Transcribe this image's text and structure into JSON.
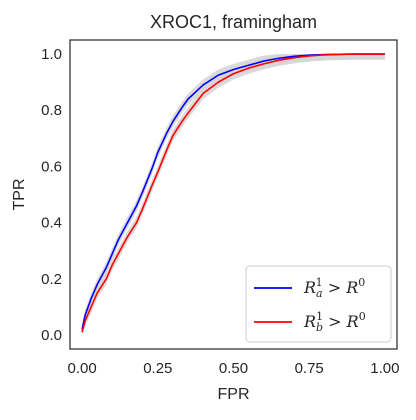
{
  "chart_data": {
    "type": "line",
    "title": "XROC1, framingham",
    "xlabel": "FPR",
    "ylabel": "TPR",
    "xlim": [
      -0.04,
      1.04
    ],
    "ylim": [
      -0.05,
      1.05
    ],
    "xticks": [
      0.0,
      0.25,
      0.5,
      0.75,
      1.0
    ],
    "xtick_labels": [
      "0.00",
      "0.25",
      "0.50",
      "0.75",
      "1.00"
    ],
    "yticks": [
      0.0,
      0.2,
      0.4,
      0.6,
      0.8,
      1.0
    ],
    "ytick_labels": [
      "0.0",
      "0.2",
      "0.4",
      "0.6",
      "0.8",
      "1.0"
    ],
    "grid": false,
    "legend_position": "lower-right",
    "series": [
      {
        "name": "R_a^1 > R^0",
        "color": "#0000ff",
        "x": [
          0.0,
          0.01,
          0.03,
          0.05,
          0.08,
          0.1,
          0.12,
          0.15,
          0.18,
          0.2,
          0.23,
          0.25,
          0.28,
          0.3,
          0.33,
          0.35,
          0.4,
          0.45,
          0.5,
          0.55,
          0.6,
          0.65,
          0.7,
          0.75,
          0.8,
          0.85,
          0.9,
          1.0
        ],
        "y": [
          0.02,
          0.07,
          0.13,
          0.18,
          0.24,
          0.29,
          0.34,
          0.4,
          0.46,
          0.51,
          0.59,
          0.65,
          0.72,
          0.76,
          0.81,
          0.84,
          0.89,
          0.925,
          0.945,
          0.96,
          0.975,
          0.985,
          0.992,
          0.996,
          0.998,
          0.999,
          1.0,
          1.0
        ]
      },
      {
        "name": "R_b^1 > R^0",
        "color": "#ff0000",
        "x": [
          0.0,
          0.01,
          0.03,
          0.05,
          0.08,
          0.1,
          0.12,
          0.15,
          0.18,
          0.2,
          0.23,
          0.25,
          0.28,
          0.3,
          0.33,
          0.35,
          0.4,
          0.45,
          0.5,
          0.55,
          0.6,
          0.65,
          0.7,
          0.75,
          0.8,
          0.85,
          0.9,
          1.0
        ],
        "y": [
          0.01,
          0.05,
          0.1,
          0.15,
          0.2,
          0.25,
          0.29,
          0.35,
          0.4,
          0.45,
          0.53,
          0.58,
          0.66,
          0.71,
          0.76,
          0.79,
          0.86,
          0.9,
          0.93,
          0.95,
          0.965,
          0.978,
          0.987,
          0.993,
          0.997,
          0.999,
          1.0,
          1.0
        ]
      }
    ],
    "band_color": "#d3d3d3",
    "band_halfwidth": 0.02
  },
  "legend": {
    "entries": [
      {
        "base": "R",
        "sub": "a",
        "sup": "1",
        "rel": " > ",
        "rhs_base": "R",
        "rhs_sup": "0",
        "color": "#0000ff"
      },
      {
        "base": "R",
        "sub": "b",
        "sup": "1",
        "rel": " > ",
        "rhs_base": "R",
        "rhs_sup": "0",
        "color": "#ff0000"
      }
    ]
  }
}
